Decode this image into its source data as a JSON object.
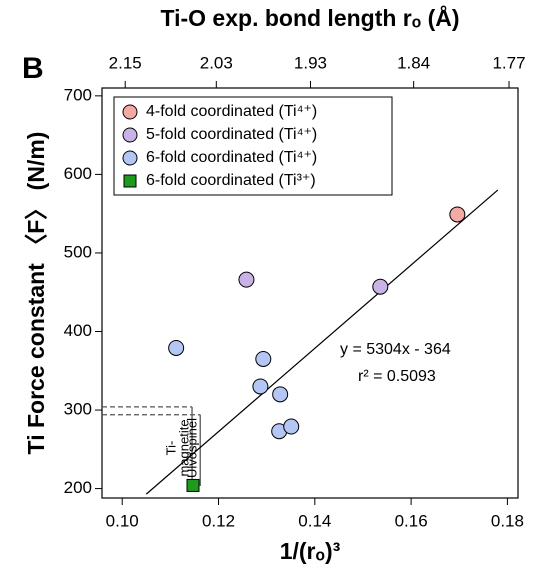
{
  "chart_data": {
    "type": "scatter",
    "panel_label": "B",
    "x2label": "Ti-O exp. bond length rₒ (Å)",
    "xlabel": "1/(rₒ)³",
    "ylabel": "Ti Force constant 〈F〉 (N/m)",
    "xlim": [
      0.0958,
      0.1822
    ],
    "ylim": [
      188,
      710
    ],
    "xticks": [
      {
        "value": 0.1,
        "label": "0.10"
      },
      {
        "value": 0.12,
        "label": "0.12"
      },
      {
        "value": 0.14,
        "label": "0.14"
      },
      {
        "value": 0.16,
        "label": "0.16"
      },
      {
        "value": 0.18,
        "label": "0.18"
      }
    ],
    "yticks": [
      200,
      300,
      400,
      500,
      600,
      700
    ],
    "x2ticks": [
      2.15,
      2.03,
      1.93,
      1.84,
      1.77
    ],
    "x2transform": "inverse-cube",
    "series": [
      {
        "name": "4-fold coordinated (Ti⁴⁺)",
        "color": "#f4a9a3",
        "marker": "circle",
        "x": [
          0.1696
        ],
        "values": [
          549
        ]
      },
      {
        "name": "5-fold coordinated (Ti⁴⁺)",
        "color": "#c9b3e6",
        "marker": "circle",
        "x": [
          0.1258,
          0.1536
        ],
        "values": [
          466,
          457
        ]
      },
      {
        "name": "6-fold coordinated (Ti⁴⁺)",
        "color": "#b4c6f4",
        "marker": "circle",
        "x": [
          0.1112,
          0.1293,
          0.1287,
          0.1328,
          0.1326,
          0.1351
        ],
        "values": [
          379,
          365,
          330,
          320,
          273,
          279
        ]
      },
      {
        "name": "6-fold coordinated (Ti³⁺)",
        "color": "#1e9a1e",
        "marker": "square",
        "x": [
          0.1147
        ],
        "values": [
          204
        ]
      }
    ],
    "fit": {
      "slope": 5304,
      "intercept": -364,
      "xrange": [
        0.105,
        0.178
      ]
    },
    "annotations": [
      "y = 5304x - 364",
      "r² = 0.5093"
    ],
    "references": [
      {
        "label": [
          "Ti-",
          "magnetite"
        ],
        "y": 304,
        "x": 0.1145
      },
      {
        "label": [
          "Ulvöspinel"
        ],
        "y": 294,
        "x": 0.1162
      }
    ]
  }
}
